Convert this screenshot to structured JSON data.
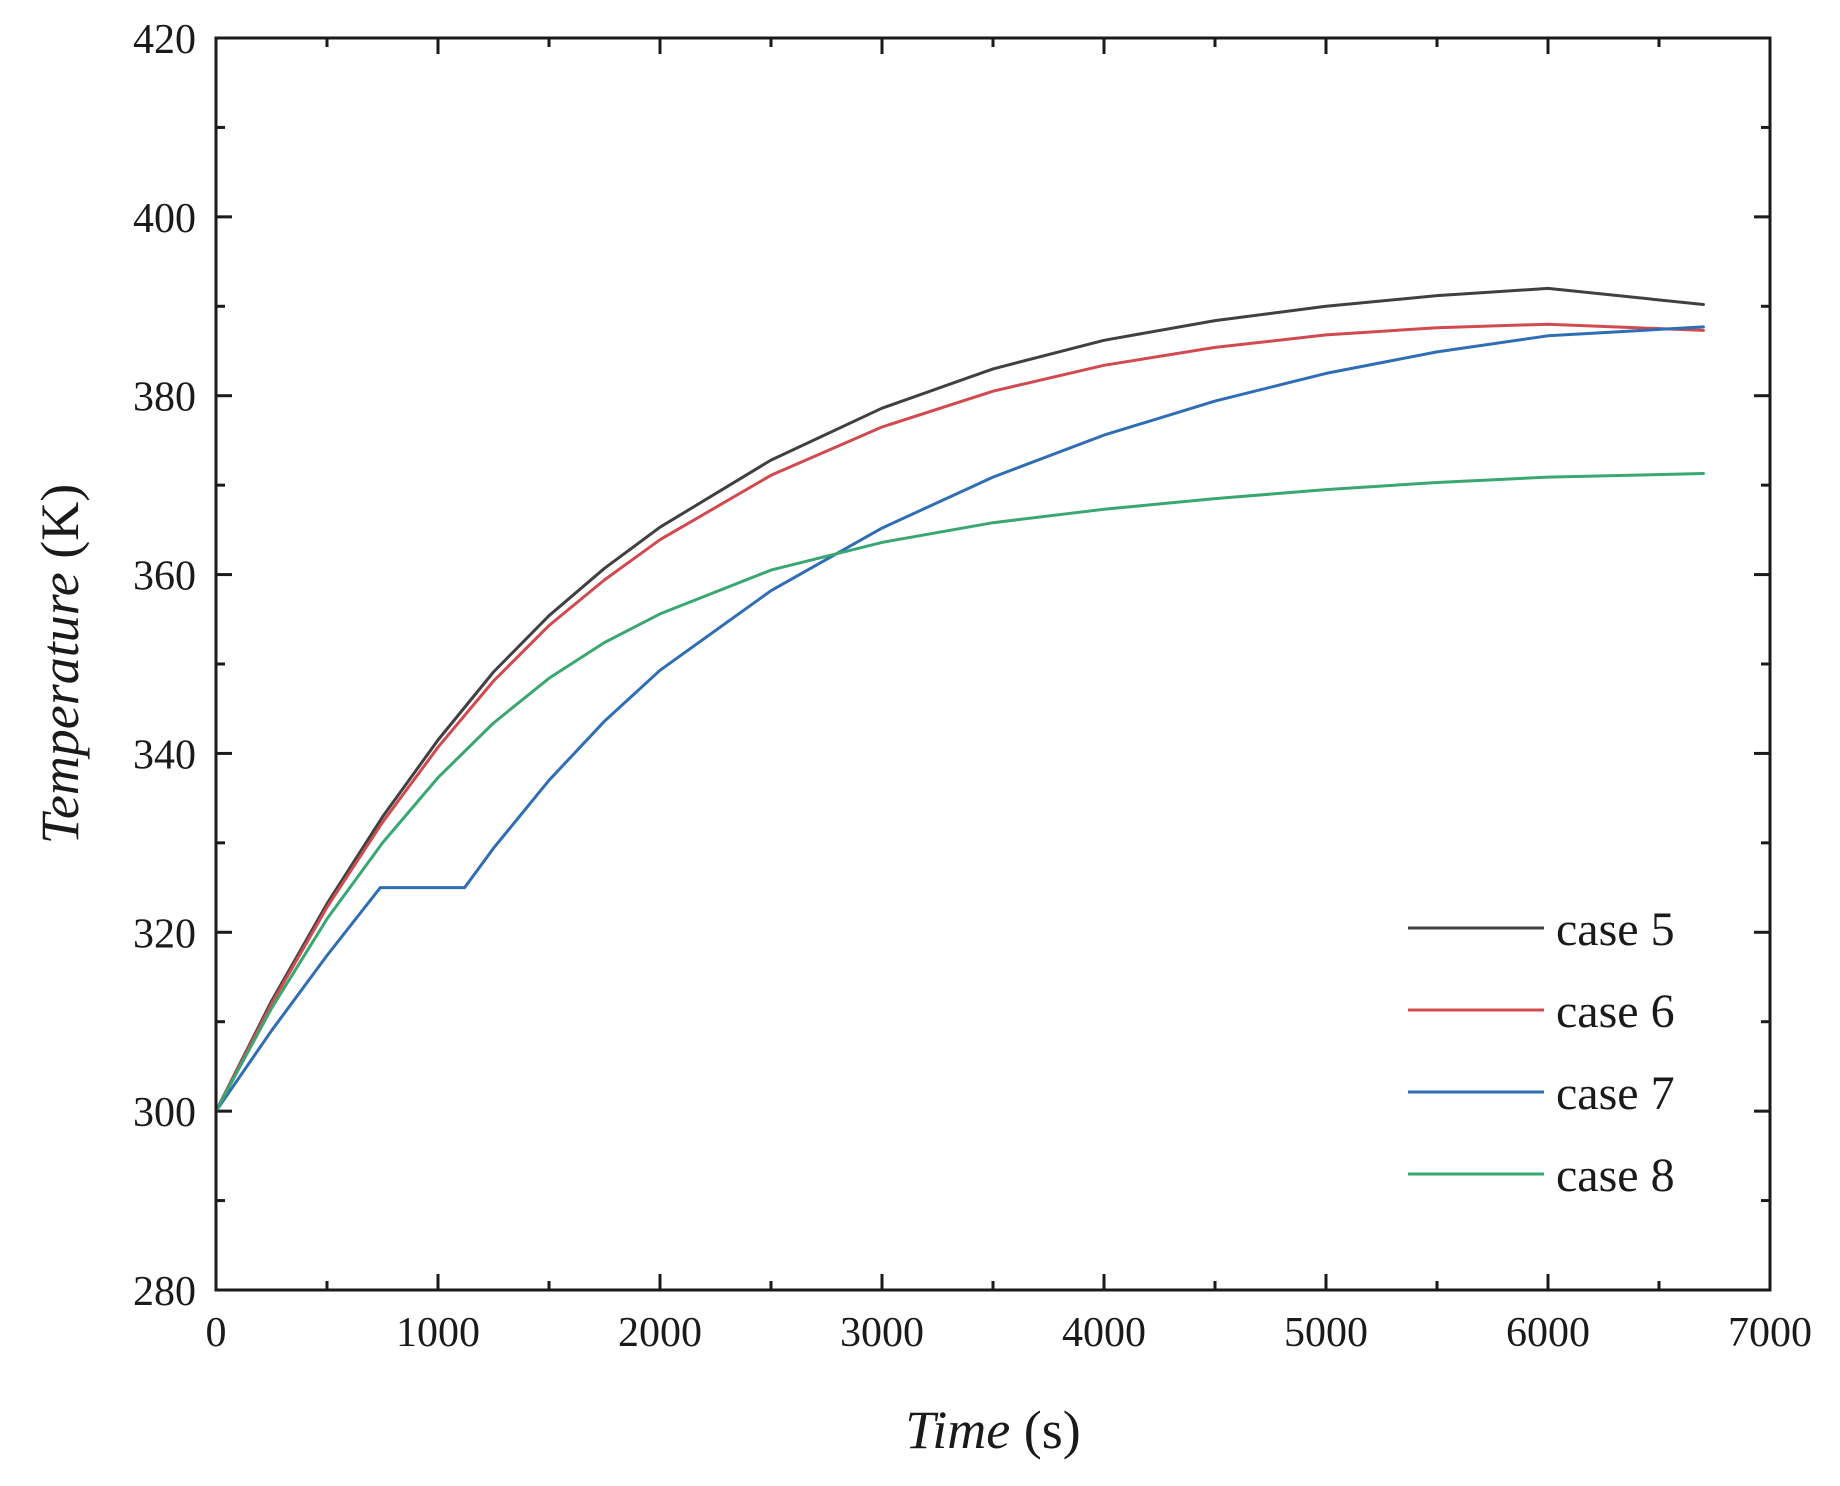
{
  "chart_data": {
    "type": "line",
    "title": "",
    "xlabel_italic": "Time",
    "xlabel_unit": " (s)",
    "ylabel_italic": "Temperature",
    "ylabel_unit": " (K)",
    "xlim": [
      0,
      7000
    ],
    "ylim": [
      280,
      420
    ],
    "x_major_ticks": [
      0,
      1000,
      2000,
      3000,
      4000,
      5000,
      6000,
      7000
    ],
    "x_tick_labels": [
      "0",
      "1000",
      "2000",
      "3000",
      "4000",
      "5000",
      "6000",
      "7000"
    ],
    "y_major_ticks": [
      280,
      300,
      320,
      340,
      360,
      380,
      400,
      420
    ],
    "y_tick_labels": [
      "280",
      "300",
      "320",
      "340",
      "360",
      "380",
      "400",
      "420"
    ],
    "x_minor_step": 500,
    "y_minor_step": 10,
    "grid": false,
    "legend_position": "bottom-right",
    "series": [
      {
        "name": "case 5",
        "color": "#404040",
        "x": [
          0,
          250,
          500,
          750,
          1000,
          1250,
          1500,
          1750,
          2000,
          2500,
          3000,
          3500,
          4000,
          4500,
          5000,
          5500,
          6000,
          6700
        ],
        "y": [
          300,
          312.3,
          323.2,
          332.9,
          341.5,
          349.1,
          355.4,
          360.7,
          365.3,
          372.8,
          378.6,
          383.0,
          386.2,
          388.4,
          390.0,
          391.2,
          392.0,
          390.2
        ]
      },
      {
        "name": "case 6",
        "color": "#d04a4f",
        "x": [
          0,
          250,
          500,
          750,
          1000,
          1250,
          1500,
          1750,
          2000,
          2500,
          3000,
          3500,
          4000,
          4500,
          5000,
          5500,
          6000,
          6700
        ],
        "y": [
          300,
          312.0,
          322.8,
          332.3,
          340.7,
          348.1,
          354.3,
          359.4,
          363.9,
          371.1,
          376.5,
          380.5,
          383.4,
          385.4,
          386.8,
          387.6,
          388.0,
          387.3
        ]
      },
      {
        "name": "case 7",
        "color": "#2f6db5",
        "x": [
          0,
          250,
          500,
          740,
          1120,
          1250,
          1500,
          1750,
          2000,
          2500,
          3000,
          3500,
          4000,
          4500,
          5000,
          5500,
          6000,
          6700
        ],
        "y": [
          300,
          309.0,
          317.4,
          325.0,
          325.0,
          329.4,
          337.0,
          343.6,
          349.3,
          358.2,
          365.2,
          370.9,
          375.6,
          379.4,
          382.5,
          384.9,
          386.7,
          387.7
        ]
      },
      {
        "name": "case 8",
        "color": "#3aa772",
        "x": [
          0,
          250,
          500,
          750,
          1000,
          1250,
          1500,
          1750,
          2000,
          2500,
          3000,
          3500,
          4000,
          4500,
          5000,
          5500,
          6000,
          6700
        ],
        "y": [
          300,
          311.5,
          321.5,
          330.0,
          337.3,
          343.4,
          348.4,
          352.4,
          355.6,
          360.5,
          363.6,
          365.8,
          367.3,
          368.5,
          369.5,
          370.3,
          370.9,
          371.3
        ]
      }
    ]
  }
}
